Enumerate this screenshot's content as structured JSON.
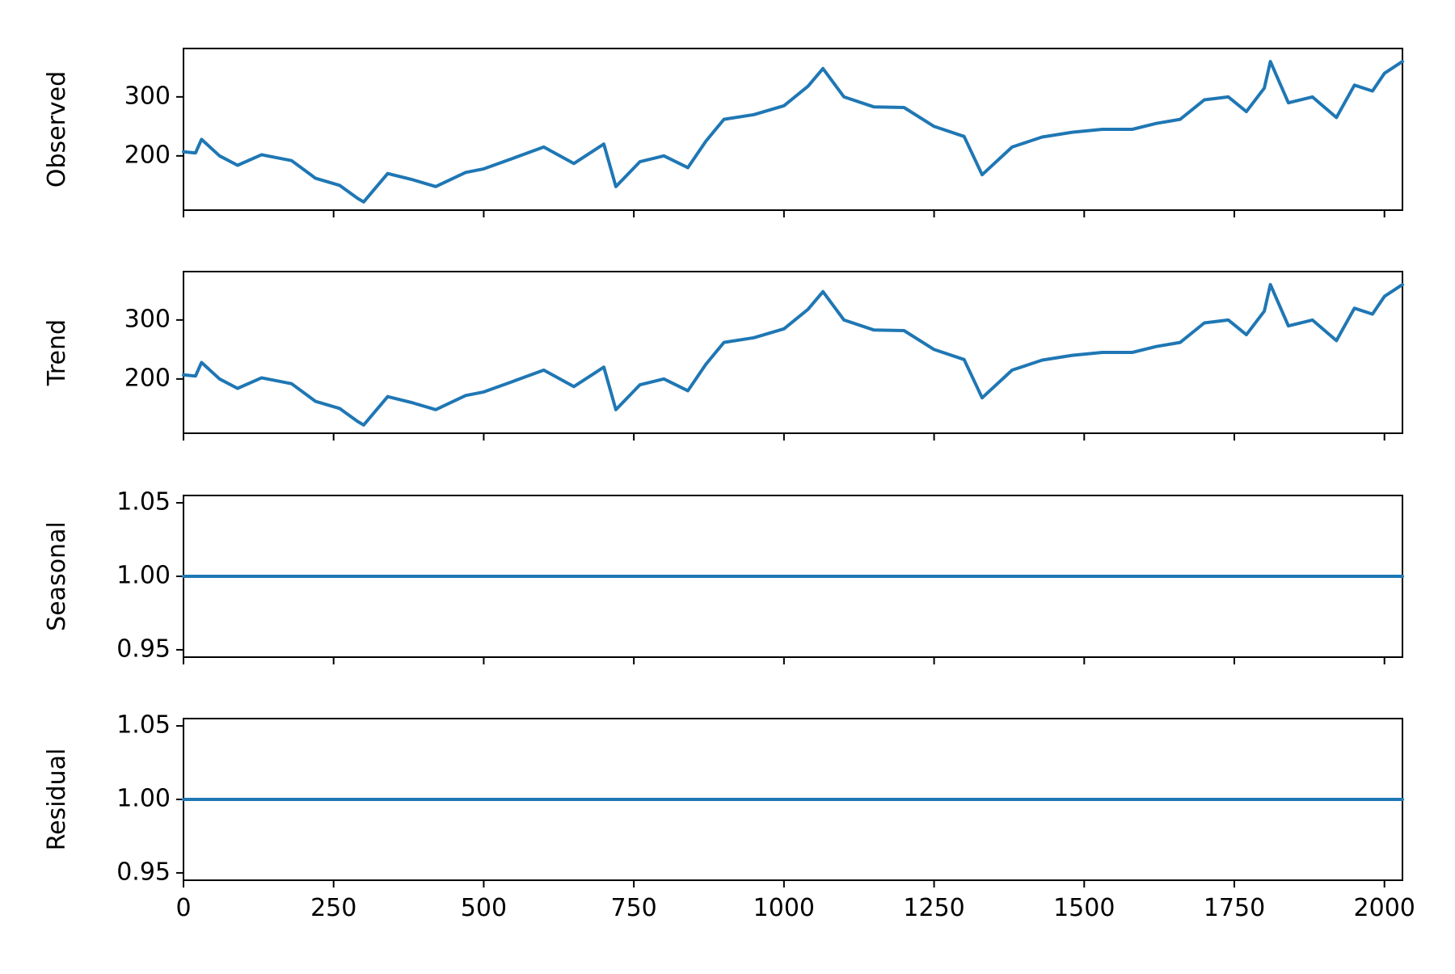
{
  "chart_data": {
    "type": "line",
    "subplots_shared_x": true,
    "xlim": [
      0,
      2030
    ],
    "x_ticks": [
      0,
      250,
      500,
      750,
      1000,
      1250,
      1500,
      1750,
      2000
    ],
    "x_tick_labels": [
      "0",
      "250",
      "500",
      "750",
      "1000",
      "1250",
      "1500",
      "1750",
      "2000"
    ],
    "line_color": "#1f77b4",
    "panels": [
      {
        "ylabel": "Observed",
        "ylim": [
          108,
          382
        ],
        "y_ticks": [
          200,
          300
        ],
        "y_tick_labels": [
          "200",
          "300"
        ],
        "x_tick_labels_shown": false,
        "series": {
          "x": [
            0,
            20,
            30,
            60,
            90,
            130,
            180,
            220,
            260,
            290,
            300,
            340,
            380,
            420,
            470,
            500,
            560,
            600,
            650,
            700,
            720,
            760,
            800,
            840,
            870,
            900,
            950,
            1000,
            1040,
            1065,
            1100,
            1150,
            1200,
            1250,
            1300,
            1330,
            1380,
            1430,
            1480,
            1530,
            1580,
            1620,
            1660,
            1700,
            1740,
            1770,
            1800,
            1810,
            1840,
            1880,
            1920,
            1950,
            1980,
            2000,
            2030
          ],
          "y": [
            207,
            205,
            228,
            200,
            184,
            202,
            192,
            162,
            150,
            128,
            122,
            170,
            160,
            148,
            172,
            178,
            200,
            215,
            187,
            220,
            148,
            190,
            200,
            180,
            225,
            262,
            270,
            285,
            318,
            348,
            300,
            283,
            282,
            250,
            233,
            168,
            215,
            232,
            240,
            245,
            245,
            255,
            262,
            295,
            300,
            275,
            315,
            360,
            290,
            300,
            265,
            320,
            310,
            340,
            360
          ]
        }
      },
      {
        "ylabel": "Trend",
        "ylim": [
          108,
          382
        ],
        "y_ticks": [
          200,
          300
        ],
        "y_tick_labels": [
          "200",
          "300"
        ],
        "x_tick_labels_shown": false,
        "series": {
          "x": [
            0,
            20,
            30,
            60,
            90,
            130,
            180,
            220,
            260,
            290,
            300,
            340,
            380,
            420,
            470,
            500,
            560,
            600,
            650,
            700,
            720,
            760,
            800,
            840,
            870,
            900,
            950,
            1000,
            1040,
            1065,
            1100,
            1150,
            1200,
            1250,
            1300,
            1330,
            1380,
            1430,
            1480,
            1530,
            1580,
            1620,
            1660,
            1700,
            1740,
            1770,
            1800,
            1810,
            1840,
            1880,
            1920,
            1950,
            1980,
            2000,
            2030
          ],
          "y": [
            207,
            205,
            228,
            200,
            184,
            202,
            192,
            162,
            150,
            128,
            122,
            170,
            160,
            148,
            172,
            178,
            200,
            215,
            187,
            220,
            148,
            190,
            200,
            180,
            225,
            262,
            270,
            285,
            318,
            348,
            300,
            283,
            282,
            250,
            233,
            168,
            215,
            232,
            240,
            245,
            245,
            255,
            262,
            295,
            300,
            275,
            315,
            360,
            290,
            300,
            265,
            320,
            310,
            340,
            360
          ]
        }
      },
      {
        "ylabel": "Seasonal",
        "ylim": [
          0.945,
          1.055
        ],
        "y_ticks": [
          0.95,
          1.0,
          1.05
        ],
        "y_tick_labels": [
          "0.95",
          "1.00",
          "1.05"
        ],
        "x_tick_labels_shown": false,
        "series": {
          "x": [
            0,
            2030
          ],
          "y": [
            1.0,
            1.0
          ]
        }
      },
      {
        "ylabel": "Residual",
        "ylim": [
          0.945,
          1.055
        ],
        "y_ticks": [
          0.95,
          1.0,
          1.05
        ],
        "y_tick_labels": [
          "0.95",
          "1.00",
          "1.05"
        ],
        "x_tick_labels_shown": true,
        "series": {
          "x": [
            0,
            2030
          ],
          "y": [
            1.0,
            1.0
          ]
        }
      }
    ]
  }
}
